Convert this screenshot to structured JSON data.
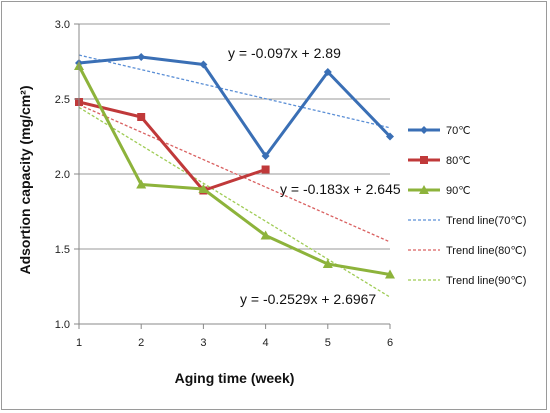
{
  "chart_data": {
    "type": "line",
    "xlabel": "Aging time (week)",
    "ylabel": "Adsortion capacity (mg/cm²)",
    "xlim": [
      1,
      6
    ],
    "ylim": [
      1.0,
      3.0
    ],
    "x_ticks": [
      "1",
      "2",
      "3",
      "4",
      "5",
      "6"
    ],
    "y_ticks": [
      "1.0",
      "1.5",
      "2.0",
      "2.5",
      "3.0"
    ],
    "grid": "horizontal",
    "legend_position": "right",
    "series": [
      {
        "name": "70℃",
        "color": "#3a6fb5",
        "marker": "diamond",
        "x": [
          1,
          2,
          3,
          4,
          5,
          6
        ],
        "y": [
          2.74,
          2.78,
          2.73,
          2.12,
          2.68,
          2.25
        ]
      },
      {
        "name": "80℃",
        "color": "#c0393a",
        "marker": "square",
        "x": [
          1,
          2,
          3,
          4
        ],
        "y": [
          2.48,
          2.38,
          1.89,
          2.03
        ]
      },
      {
        "name": "90℃",
        "color": "#8db33b",
        "marker": "triangle",
        "x": [
          1,
          2,
          3,
          4,
          5,
          6
        ],
        "y": [
          2.72,
          1.93,
          1.9,
          1.59,
          1.4,
          1.33
        ]
      }
    ],
    "trendlines": [
      {
        "name": "Trend line(70℃)",
        "color": "#5b8fd6",
        "slope": -0.097,
        "intercept": 2.89,
        "equation": "y = -0.097x + 2.89"
      },
      {
        "name": "Trend line(80℃)",
        "color": "#d96060",
        "slope": -0.183,
        "intercept": 2.645,
        "equation": "y = -0.183x + 2.645"
      },
      {
        "name": "Trend line(90℃)",
        "color": "#9fcc55",
        "slope": -0.2529,
        "intercept": 2.6967,
        "equation": "y = -0.2529x + 2.6967"
      }
    ]
  }
}
